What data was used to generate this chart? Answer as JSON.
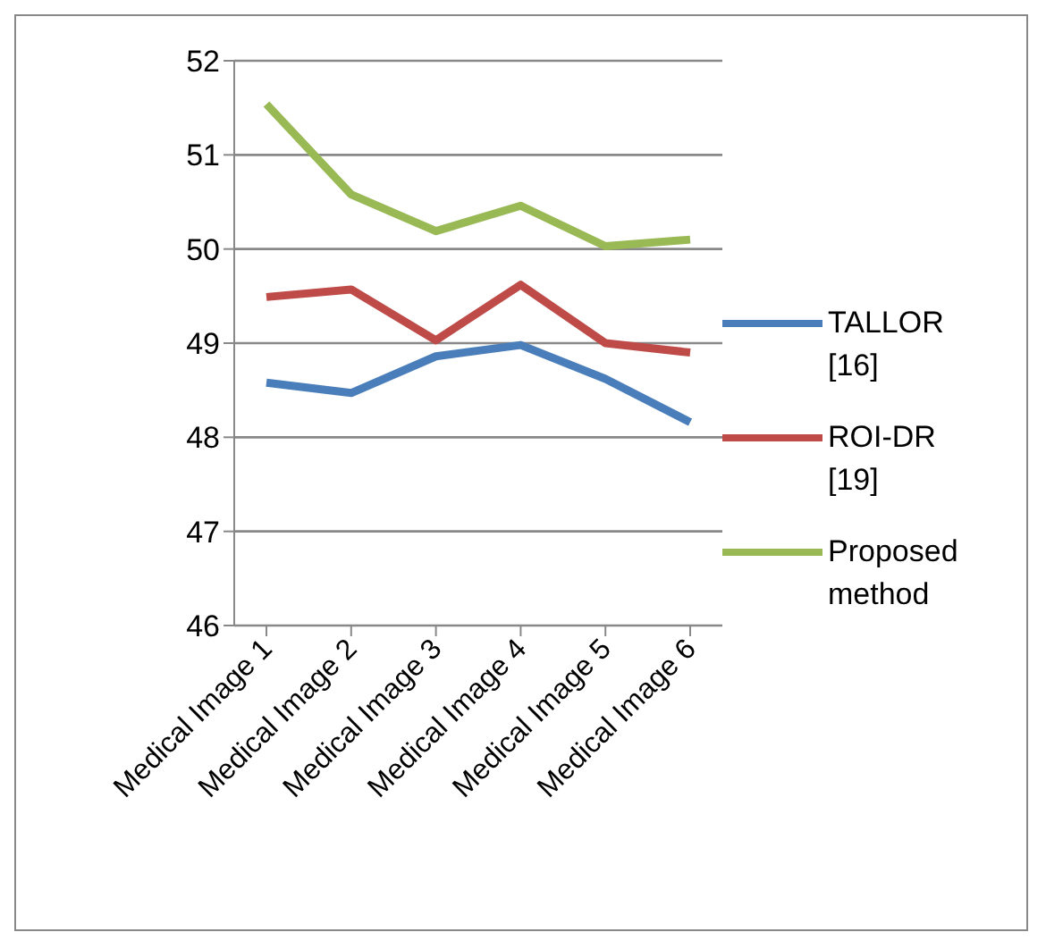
{
  "chart_data": {
    "type": "line",
    "categories": [
      "Medical Image 1",
      "Medical Image 2",
      "Medical Image 3",
      "Medical Image 4",
      "Medical Image 5",
      "Medical Image 6"
    ],
    "series": [
      {
        "name": "TALLOR [16]",
        "color": "#4a7ebb",
        "values": [
          48.58,
          48.47,
          48.86,
          48.98,
          48.62,
          48.16
        ]
      },
      {
        "name": "ROI-DR [19]",
        "color": "#be4b48",
        "values": [
          49.49,
          49.57,
          49.03,
          49.62,
          49.0,
          48.9
        ]
      },
      {
        "name": "Proposed method",
        "color": "#98b954",
        "values": [
          51.54,
          50.58,
          50.19,
          50.46,
          50.03,
          50.1
        ]
      }
    ],
    "ylim": [
      46,
      52
    ],
    "yticks": [
      46,
      47,
      48,
      49,
      50,
      51,
      52
    ],
    "grid": "y",
    "legend": "right",
    "marker": "none",
    "line_style": "solid"
  }
}
